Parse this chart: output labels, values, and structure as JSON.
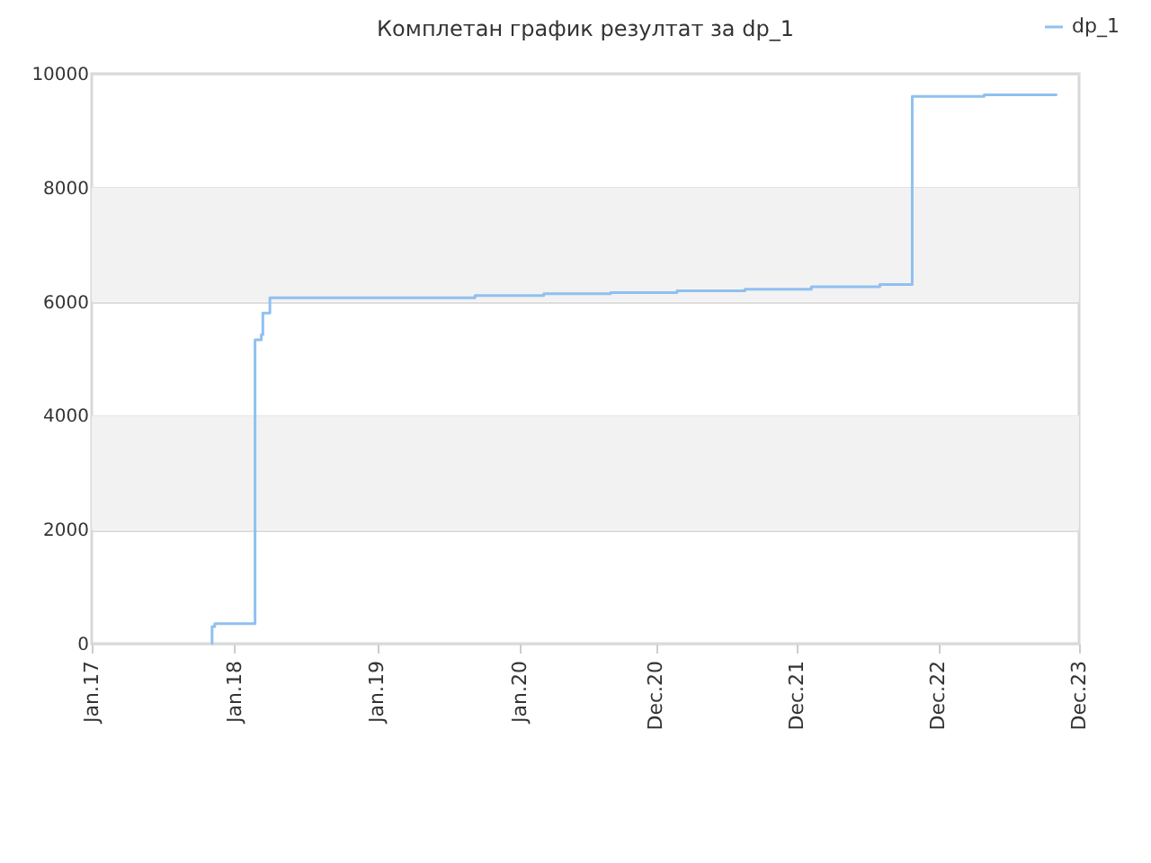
{
  "chart_data": {
    "type": "step",
    "title": "Комплетан график резултат за dp_1",
    "x": [
      "2017-11-04",
      "2017-11-05",
      "2017-11-12",
      "2018-02-23",
      "2018-03-11",
      "2018-03-15",
      "2018-04-02",
      "2019-09-09",
      "2020-03-03",
      "2020-08-21",
      "2021-02-07",
      "2021-07-31",
      "2022-01-17",
      "2022-07-11",
      "2022-10-02",
      "2023-04-04",
      "2023-10-08"
    ],
    "series": [
      {
        "name": "dp_1",
        "color": "#90c0f0",
        "values": [
          0,
          300,
          350,
          5330,
          5420,
          5800,
          6070,
          6110,
          6140,
          6160,
          6190,
          6220,
          6260,
          6300,
          9600,
          9630,
          9630
        ]
      }
    ],
    "xlim": [
      "2017-01-01",
      "2023-12-03"
    ],
    "xticks": [
      {
        "value": "2017-01-01",
        "label": "Jan.17"
      },
      {
        "value": "2018-01-01",
        "label": "Jan.18"
      },
      {
        "value": "2019-01-01",
        "label": "Jan.19"
      },
      {
        "value": "2020-01-01",
        "label": "Jan.20"
      },
      {
        "value": "2020-12-15",
        "label": "Dec.20"
      },
      {
        "value": "2021-12-11",
        "label": "Dec.21"
      },
      {
        "value": "2022-12-07",
        "label": "Dec.22"
      },
      {
        "value": "2023-12-03",
        "label": "Dec.23"
      }
    ],
    "ylim": [
      0,
      10000
    ],
    "yticks": [
      0,
      2000,
      4000,
      6000,
      8000,
      10000
    ],
    "bands": [
      {
        "axis": "y",
        "from": 2000,
        "to": 4000,
        "color": "#f2f2f2"
      },
      {
        "axis": "y",
        "from": 6000,
        "to": 8000,
        "color": "#f2f2f2"
      }
    ],
    "grid": "y",
    "legend": "top right",
    "line_style": "solid"
  }
}
